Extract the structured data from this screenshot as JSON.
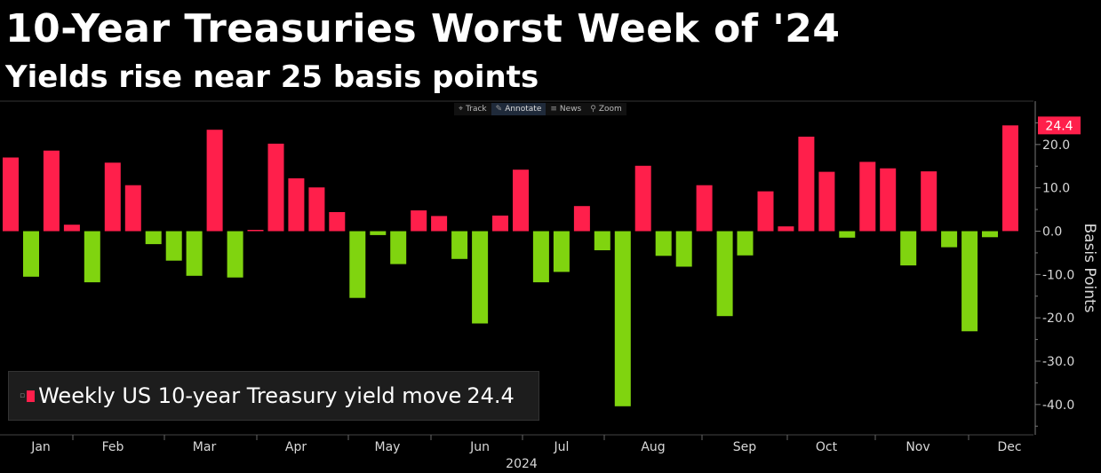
{
  "header": {
    "title": "10-Year Treasuries Worst Week of '24",
    "subtitle": "Yields rise near 25 basis points"
  },
  "toolbar": {
    "items": [
      {
        "label": "Track",
        "icon": "crosshair-icon"
      },
      {
        "label": "Annotate",
        "icon": "pencil-icon",
        "active": true
      },
      {
        "label": "News",
        "icon": "news-icon"
      },
      {
        "label": "Zoom",
        "icon": "magnifier-icon"
      }
    ]
  },
  "legend": {
    "name": "Weekly US 10-year Treasury yield move",
    "value": "24.4"
  },
  "colors": {
    "positive": "#ff1f4b",
    "negative": "#80d40f",
    "background": "#000000",
    "grid": "#3a3a3a",
    "last_value_badge": "#ff1f4b"
  },
  "chart_data": {
    "type": "bar",
    "title": "10-Year Treasuries Worst Week of '24",
    "subtitle": "Yields rise near 25 basis points",
    "ylabel": "Basis Points",
    "xlabel": "2024",
    "ylim": [
      -47,
      30
    ],
    "yticks": [
      20.0,
      10.0,
      0.0,
      -10.0,
      -20.0,
      -30.0,
      -40.0
    ],
    "y_axis_position": "right",
    "legend_position": "bottom-left",
    "grid": false,
    "last_value_label": "24.4",
    "month_labels": [
      "Jan",
      "Feb",
      "Mar",
      "Apr",
      "May",
      "Jun",
      "Jul",
      "Aug",
      "Sep",
      "Oct",
      "Nov",
      "Dec"
    ],
    "year_label": "2024",
    "series": [
      {
        "name": "Weekly US 10-year Treasury yield move",
        "values": [
          17.0,
          -10.5,
          18.6,
          1.5,
          -11.8,
          15.8,
          10.6,
          -3.0,
          -6.8,
          -10.3,
          23.4,
          -10.7,
          0.3,
          20.2,
          12.2,
          10.1,
          4.4,
          -15.4,
          -0.9,
          -7.6,
          4.8,
          3.5,
          -6.4,
          -21.3,
          3.6,
          14.2,
          -11.8,
          -9.4,
          5.8,
          -4.4,
          -40.4,
          15.1,
          -5.7,
          -8.2,
          10.6,
          -19.6,
          -5.6,
          9.2,
          1.1,
          21.8,
          13.7,
          -1.5,
          16.0,
          14.5,
          -7.9,
          13.8,
          -3.7,
          -23.1,
          -1.4,
          24.4
        ]
      }
    ]
  }
}
